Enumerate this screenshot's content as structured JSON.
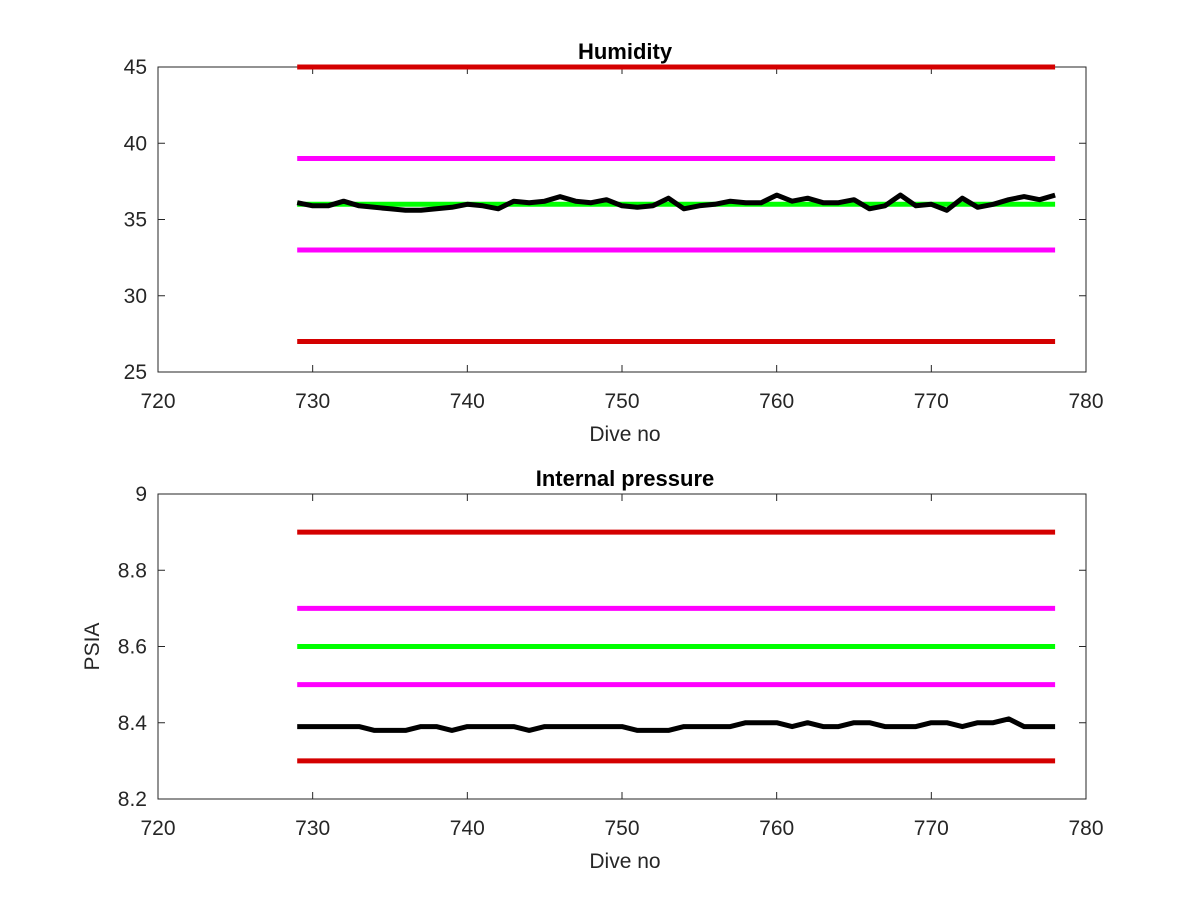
{
  "chart_data": [
    {
      "type": "line",
      "title": "Humidity",
      "xlabel": "Dive no",
      "ylabel": "",
      "xlim": [
        720,
        780
      ],
      "ylim": [
        25,
        45
      ],
      "xticks": [
        720,
        730,
        740,
        750,
        760,
        770,
        780
      ],
      "xtick_labels": [
        "720",
        "730",
        "740",
        "750",
        "760",
        "770",
        "780"
      ],
      "yticks": [
        25,
        30,
        35,
        40,
        45
      ],
      "ytick_labels": [
        "25",
        "30",
        "35",
        "40",
        "45"
      ],
      "grid": false,
      "series": [
        {
          "color": "#d40000",
          "x": [
            729,
            778
          ],
          "y": [
            45,
            45
          ]
        },
        {
          "color": "#ff00ff",
          "x": [
            729,
            778
          ],
          "y": [
            39,
            39
          ]
        },
        {
          "color": "#00ff00",
          "x": [
            729,
            778
          ],
          "y": [
            36,
            36
          ]
        },
        {
          "color": "#ff00ff",
          "x": [
            729,
            778
          ],
          "y": [
            33,
            33
          ]
        },
        {
          "color": "#d40000",
          "x": [
            729,
            778
          ],
          "y": [
            27,
            27
          ]
        },
        {
          "color": "#000000",
          "x": [
            729,
            730,
            731,
            732,
            733,
            734,
            735,
            736,
            737,
            738,
            739,
            740,
            741,
            742,
            743,
            744,
            745,
            746,
            747,
            748,
            749,
            750,
            751,
            752,
            753,
            754,
            755,
            756,
            757,
            758,
            759,
            760,
            761,
            762,
            763,
            764,
            765,
            766,
            767,
            768,
            769,
            770,
            771,
            772,
            773,
            774,
            775,
            776,
            777,
            778
          ],
          "y": [
            36.1,
            35.9,
            35.9,
            36.2,
            35.9,
            35.8,
            35.7,
            35.6,
            35.6,
            35.7,
            35.8,
            36.0,
            35.9,
            35.7,
            36.2,
            36.1,
            36.2,
            36.5,
            36.2,
            36.1,
            36.3,
            35.9,
            35.8,
            35.9,
            36.4,
            35.7,
            35.9,
            36.0,
            36.2,
            36.1,
            36.1,
            36.6,
            36.2,
            36.4,
            36.1,
            36.1,
            36.3,
            35.7,
            35.9,
            36.6,
            35.9,
            36.0,
            35.6,
            36.4,
            35.8,
            36.0,
            36.3,
            36.5,
            36.3,
            36.6
          ]
        }
      ]
    },
    {
      "type": "line",
      "title": "Internal pressure",
      "xlabel": "Dive no",
      "ylabel": "PSIA",
      "xlim": [
        720,
        780
      ],
      "ylim": [
        8.2,
        9.0
      ],
      "xticks": [
        720,
        730,
        740,
        750,
        760,
        770,
        780
      ],
      "xtick_labels": [
        "720",
        "730",
        "740",
        "750",
        "760",
        "770",
        "780"
      ],
      "yticks": [
        8.2,
        8.4,
        8.6,
        8.8,
        9.0
      ],
      "ytick_labels": [
        "8.2",
        "8.4",
        "8.6",
        "8.8",
        "9"
      ],
      "grid": false,
      "series": [
        {
          "color": "#d40000",
          "x": [
            729,
            778
          ],
          "y": [
            8.9,
            8.9
          ]
        },
        {
          "color": "#ff00ff",
          "x": [
            729,
            778
          ],
          "y": [
            8.7,
            8.7
          ]
        },
        {
          "color": "#00ff00",
          "x": [
            729,
            778
          ],
          "y": [
            8.6,
            8.6
          ]
        },
        {
          "color": "#ff00ff",
          "x": [
            729,
            778
          ],
          "y": [
            8.5,
            8.5
          ]
        },
        {
          "color": "#d40000",
          "x": [
            729,
            778
          ],
          "y": [
            8.3,
            8.3
          ]
        },
        {
          "color": "#000000",
          "x": [
            729,
            730,
            731,
            732,
            733,
            734,
            735,
            736,
            737,
            738,
            739,
            740,
            741,
            742,
            743,
            744,
            745,
            746,
            747,
            748,
            749,
            750,
            751,
            752,
            753,
            754,
            755,
            756,
            757,
            758,
            759,
            760,
            761,
            762,
            763,
            764,
            765,
            766,
            767,
            768,
            769,
            770,
            771,
            772,
            773,
            774,
            775,
            776,
            777,
            778
          ],
          "y": [
            8.39,
            8.39,
            8.39,
            8.39,
            8.39,
            8.38,
            8.38,
            8.38,
            8.39,
            8.39,
            8.38,
            8.39,
            8.39,
            8.39,
            8.39,
            8.38,
            8.39,
            8.39,
            8.39,
            8.39,
            8.39,
            8.39,
            8.38,
            8.38,
            8.38,
            8.39,
            8.39,
            8.39,
            8.39,
            8.4,
            8.4,
            8.4,
            8.39,
            8.4,
            8.39,
            8.39,
            8.4,
            8.4,
            8.39,
            8.39,
            8.39,
            8.4,
            8.4,
            8.39,
            8.4,
            8.4,
            8.41,
            8.39,
            8.39,
            8.39
          ]
        }
      ]
    }
  ]
}
